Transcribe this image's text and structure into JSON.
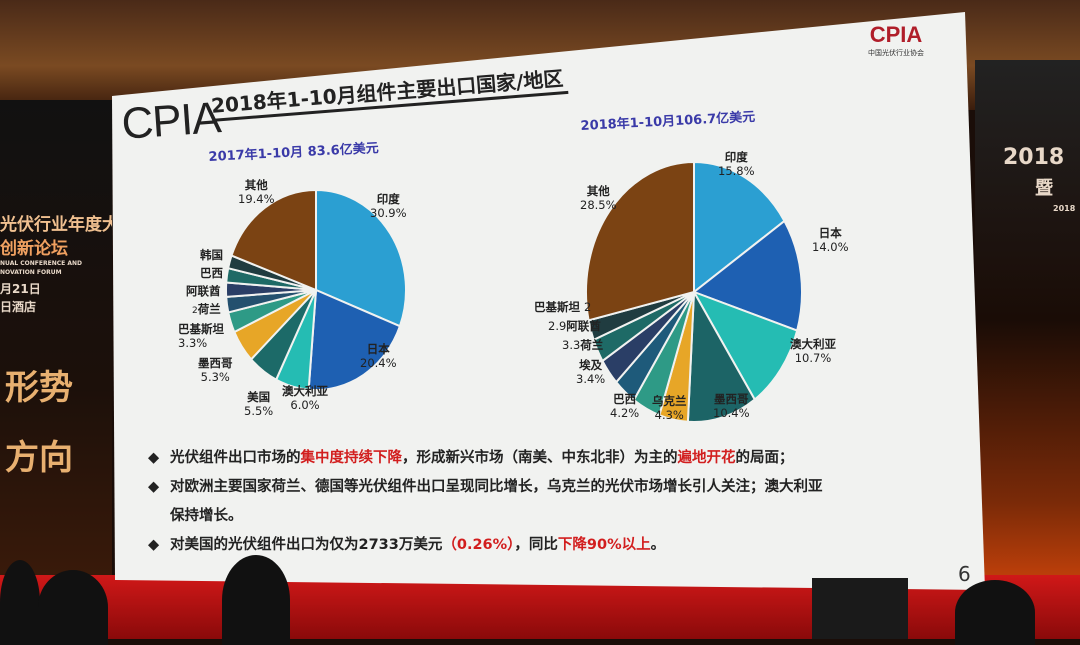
{
  "background": {
    "left_banner": [
      "光伏行业年度大会",
      "创新论坛",
      "NUAL CONFERENCE AND",
      "NOVATION FORUM",
      "月21日",
      "日酒店",
      "形势",
      "方向"
    ],
    "right_banner": [
      "2018",
      "暨",
      "2018"
    ]
  },
  "slide": {
    "logo_text": "CPIA",
    "logo_subtitle": "中国光伏行业协会",
    "brand": "CPIA",
    "title": "2018年1-10月组件主要出口国家/地区",
    "page_number": "6",
    "bullets": [
      {
        "parts": [
          {
            "t": "光伏组件出口市场的"
          },
          {
            "t": "集中度持续下降",
            "red": true
          },
          {
            "t": "，形成新兴市场（南美、中东北非）为主的"
          },
          {
            "t": "遍地开花",
            "red": true
          },
          {
            "t": "的局面；"
          }
        ]
      },
      {
        "parts": [
          {
            "t": "对欧洲主要国家荷兰、德国等光伏组件出口呈现同比增长，乌克兰的光伏市场增长引人关注；澳大利亚"
          }
        ]
      },
      {
        "parts": [
          {
            "t": "保持增长。"
          }
        ],
        "continuation": true
      },
      {
        "parts": [
          {
            "t": "对美国的光伏组件出口为仅为2733万美元"
          },
          {
            "t": "（0.26%）",
            "red": true
          },
          {
            "t": "，同比"
          },
          {
            "t": "下降90%以上",
            "red": true
          },
          {
            "t": "。"
          }
        ]
      }
    ],
    "bullet_icon": "diamond-bullet-icon",
    "colors": {
      "accent_red": "#d21e1e",
      "subtitle_blue": "#3a3aa8"
    }
  },
  "chart_data": [
    {
      "type": "pie",
      "title": "2017年1-10月 83.6亿美元",
      "start": "12 o'clock, clockwise",
      "slices": [
        {
          "label": "印度",
          "pct_text": "30.9%",
          "value": 30.9,
          "color": "#2b9fd2"
        },
        {
          "label": "日本",
          "pct_text": "20.4%",
          "value": 20.4,
          "color": "#1e60b2"
        },
        {
          "label": "澳大利亚",
          "pct_text": "6.0%",
          "value": 6.0,
          "color": "#25bcb3"
        },
        {
          "label": "美国",
          "pct_text": "5.5%",
          "value": 5.5,
          "color": "#1c6a68"
        },
        {
          "label": "墨西哥",
          "pct_text": "5.3%",
          "value": 5.3,
          "color": "#e7a627"
        },
        {
          "label": "巴基斯坦",
          "pct_text": "3.3%",
          "value": 3.3,
          "color": "#2e9a86"
        },
        {
          "label": "荷兰",
          "pct_text": "2",
          "value": 2.5,
          "color": "#24506e"
        },
        {
          "label": "阿联酋",
          "pct_text": "",
          "value": 2.3,
          "color": "#2a3e66"
        },
        {
          "label": "巴西",
          "pct_text": "",
          "value": 2.3,
          "color": "#1e6a66"
        },
        {
          "label": "韩国",
          "pct_text": "",
          "value": 2.1,
          "color": "#203c40"
        },
        {
          "label": "其他",
          "pct_text": "19.4%",
          "value": 19.4,
          "color": "#7b4313"
        }
      ]
    },
    {
      "type": "pie",
      "title": "2018年1-10月106.7亿美元",
      "start": "12 o'clock, clockwise",
      "slices": [
        {
          "label": "印度",
          "pct_text": "15.8%",
          "value": 15.8,
          "color": "#2b9fd2"
        },
        {
          "label": "日本",
          "pct_text": "14.0%",
          "value": 14.0,
          "color": "#1e60b2"
        },
        {
          "label": "澳大利亚",
          "pct_text": "10.7%",
          "value": 10.7,
          "color": "#25bcb3"
        },
        {
          "label": "墨西哥",
          "pct_text": "10.4%",
          "value": 10.4,
          "color": "#1c6466"
        },
        {
          "label": "乌克兰",
          "pct_text": "4.3%",
          "value": 4.3,
          "color": "#e7a627"
        },
        {
          "label": "巴西",
          "pct_text": "4.2%",
          "value": 4.2,
          "color": "#2e9a86"
        },
        {
          "label": "埃及",
          "pct_text": "3.4%",
          "value": 3.4,
          "color": "#1e5a7a"
        },
        {
          "label": "荷兰",
          "pct_text": "3.3",
          "value": 3.3,
          "color": "#2a3e66"
        },
        {
          "label": "阿联酋",
          "pct_text": "2.9",
          "value": 2.9,
          "color": "#1e6a66"
        },
        {
          "label": "巴基斯坦",
          "pct_text": "2",
          "value": 2.5,
          "color": "#203c40"
        },
        {
          "label": "其他",
          "pct_text": "28.5%",
          "value": 28.5,
          "color": "#7b4313"
        }
      ]
    }
  ]
}
